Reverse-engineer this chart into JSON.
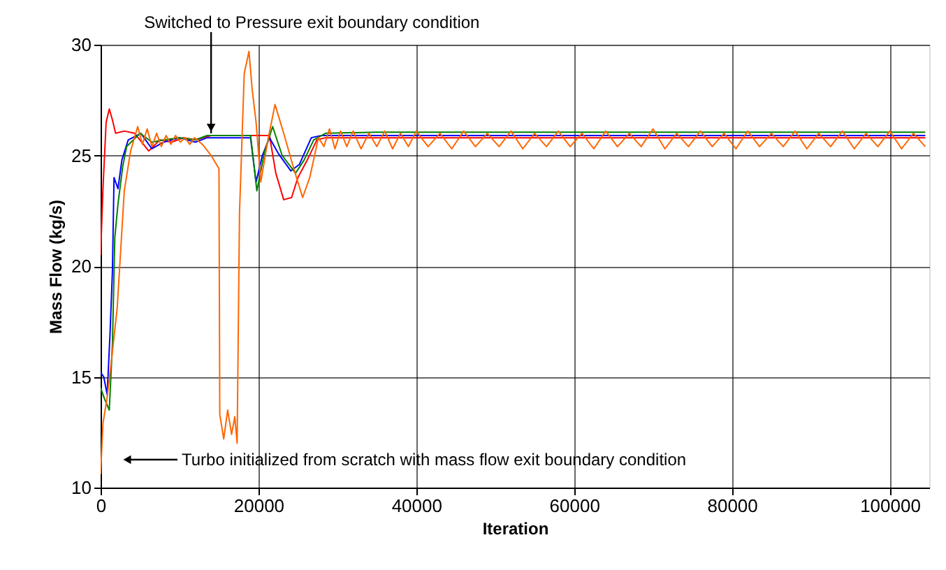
{
  "chart_data": {
    "type": "line",
    "xlabel": "Iteration",
    "ylabel": "Mass Flow (kg/s)",
    "xlim": [
      0,
      105000
    ],
    "xticks": [
      0,
      20000,
      40000,
      60000,
      80000,
      100000
    ],
    "ylim": [
      10,
      30
    ],
    "yticks": [
      10,
      15,
      20,
      25,
      30
    ],
    "grid": true,
    "annotations": [
      {
        "text": "Switched to Pressure exit boundary condition",
        "x": 14000,
        "y": 26.0
      },
      "Turbo initialized from scratch with mass flow exit boundary condition"
    ],
    "series": [
      {
        "color": "#ff0000",
        "x": [
          0,
          300,
          700,
          1100,
          1500,
          1900,
          3000,
          4300,
          5200,
          6100,
          7500,
          9000,
          10500,
          12000,
          14000,
          18000,
          21400,
          22200,
          23200,
          24200,
          25000,
          26200,
          27400,
          28500,
          35000,
          50000,
          70000,
          90000,
          104500
        ],
        "values": [
          20.5,
          23.5,
          26.5,
          27.1,
          26.6,
          26.0,
          26.1,
          26.0,
          25.6,
          25.2,
          25.7,
          25.6,
          25.8,
          25.7,
          25.9,
          25.9,
          25.9,
          24.2,
          23.0,
          23.1,
          24.0,
          24.8,
          25.7,
          25.8,
          25.8,
          25.8,
          25.8,
          25.8,
          25.8
        ]
      },
      {
        "color": "#0000ff",
        "x": [
          0,
          400,
          830,
          1200,
          1500,
          1700,
          2200,
          2700,
          3500,
          5100,
          6500,
          8000,
          10000,
          12000,
          13500,
          19000,
          19700,
          20500,
          21400,
          22500,
          24100,
          25200,
          26700,
          28000,
          35000,
          50000,
          70000,
          90000,
          104500
        ],
        "values": [
          15.2,
          15.0,
          14.2,
          17.0,
          19.8,
          24.0,
          23.5,
          24.8,
          25.7,
          26.0,
          25.3,
          25.6,
          25.8,
          25.6,
          25.8,
          25.8,
          23.8,
          25.0,
          25.8,
          25.1,
          24.3,
          24.6,
          25.8,
          25.9,
          25.9,
          25.9,
          25.9,
          25.9,
          25.9
        ]
      },
      {
        "color": "#008000",
        "x": [
          0,
          500,
          1100,
          1500,
          1800,
          2200,
          2800,
          3300,
          5000,
          6500,
          8000,
          10000,
          12000,
          13500,
          19000,
          19800,
          20800,
          21800,
          23000,
          24700,
          25800,
          27000,
          28500,
          35000,
          50000,
          70000,
          90000,
          104500
        ],
        "values": [
          14.5,
          14.0,
          13.5,
          16.5,
          21.3,
          22.8,
          24.5,
          25.4,
          26.0,
          25.6,
          25.7,
          25.8,
          25.7,
          25.9,
          25.9,
          23.4,
          25.2,
          26.3,
          25.0,
          24.2,
          24.8,
          25.7,
          26.0,
          26.05,
          26.05,
          26.05,
          26.05,
          26.05
        ]
      },
      {
        "color": "#ff6600",
        "x": [
          0,
          300,
          800,
          1300,
          2100,
          3000,
          3800,
          4700,
          5300,
          5900,
          6500,
          7100,
          7700,
          8300,
          8900,
          9500,
          10100,
          10700,
          11300,
          11900,
          12900,
          14000,
          15000,
          15100,
          15600,
          16100,
          16600,
          17000,
          17300,
          17600,
          18200,
          18800,
          19200,
          19700,
          20300,
          21200,
          22100,
          23200,
          24400,
          25600,
          26500,
          27600,
          28300,
          29000,
          29700,
          30400,
          31200,
          32000,
          33000,
          34000,
          35000,
          36000,
          37000,
          38000,
          39000,
          40000,
          41500,
          43000,
          44500,
          46000,
          47500,
          49000,
          50500,
          52000,
          53500,
          55000,
          56500,
          58000,
          59500,
          61000,
          62500,
          64000,
          65500,
          67000,
          68500,
          70000,
          71500,
          73000,
          74500,
          76000,
          77500,
          79000,
          80500,
          82000,
          83500,
          85000,
          86500,
          88000,
          89500,
          91000,
          92500,
          94000,
          95500,
          97000,
          98500,
          100000,
          101500,
          103000,
          104500
        ],
        "values": [
          10.6,
          12.9,
          14.0,
          15.5,
          18.1,
          23.4,
          25.2,
          26.3,
          25.5,
          26.2,
          25.4,
          26.0,
          25.4,
          25.9,
          25.5,
          25.9,
          25.6,
          25.8,
          25.5,
          25.8,
          25.5,
          25.0,
          24.4,
          13.3,
          12.2,
          13.5,
          12.4,
          13.2,
          12.0,
          22.4,
          28.7,
          29.7,
          28.0,
          26.5,
          23.8,
          25.7,
          27.3,
          26.0,
          24.5,
          23.1,
          24.0,
          25.8,
          25.4,
          26.2,
          25.3,
          26.1,
          25.4,
          26.1,
          25.3,
          26.0,
          25.4,
          26.1,
          25.3,
          26.0,
          25.4,
          26.1,
          25.4,
          26.0,
          25.3,
          26.1,
          25.4,
          26.0,
          25.4,
          26.1,
          25.3,
          26.0,
          25.4,
          26.1,
          25.4,
          26.0,
          25.3,
          26.1,
          25.4,
          26.0,
          25.4,
          26.2,
          25.3,
          26.0,
          25.4,
          26.1,
          25.4,
          26.0,
          25.3,
          26.1,
          25.4,
          26.0,
          25.4,
          26.1,
          25.3,
          26.0,
          25.4,
          26.1,
          25.3,
          26.0,
          25.4,
          26.1,
          25.3,
          26.0,
          25.4
        ]
      }
    ]
  }
}
